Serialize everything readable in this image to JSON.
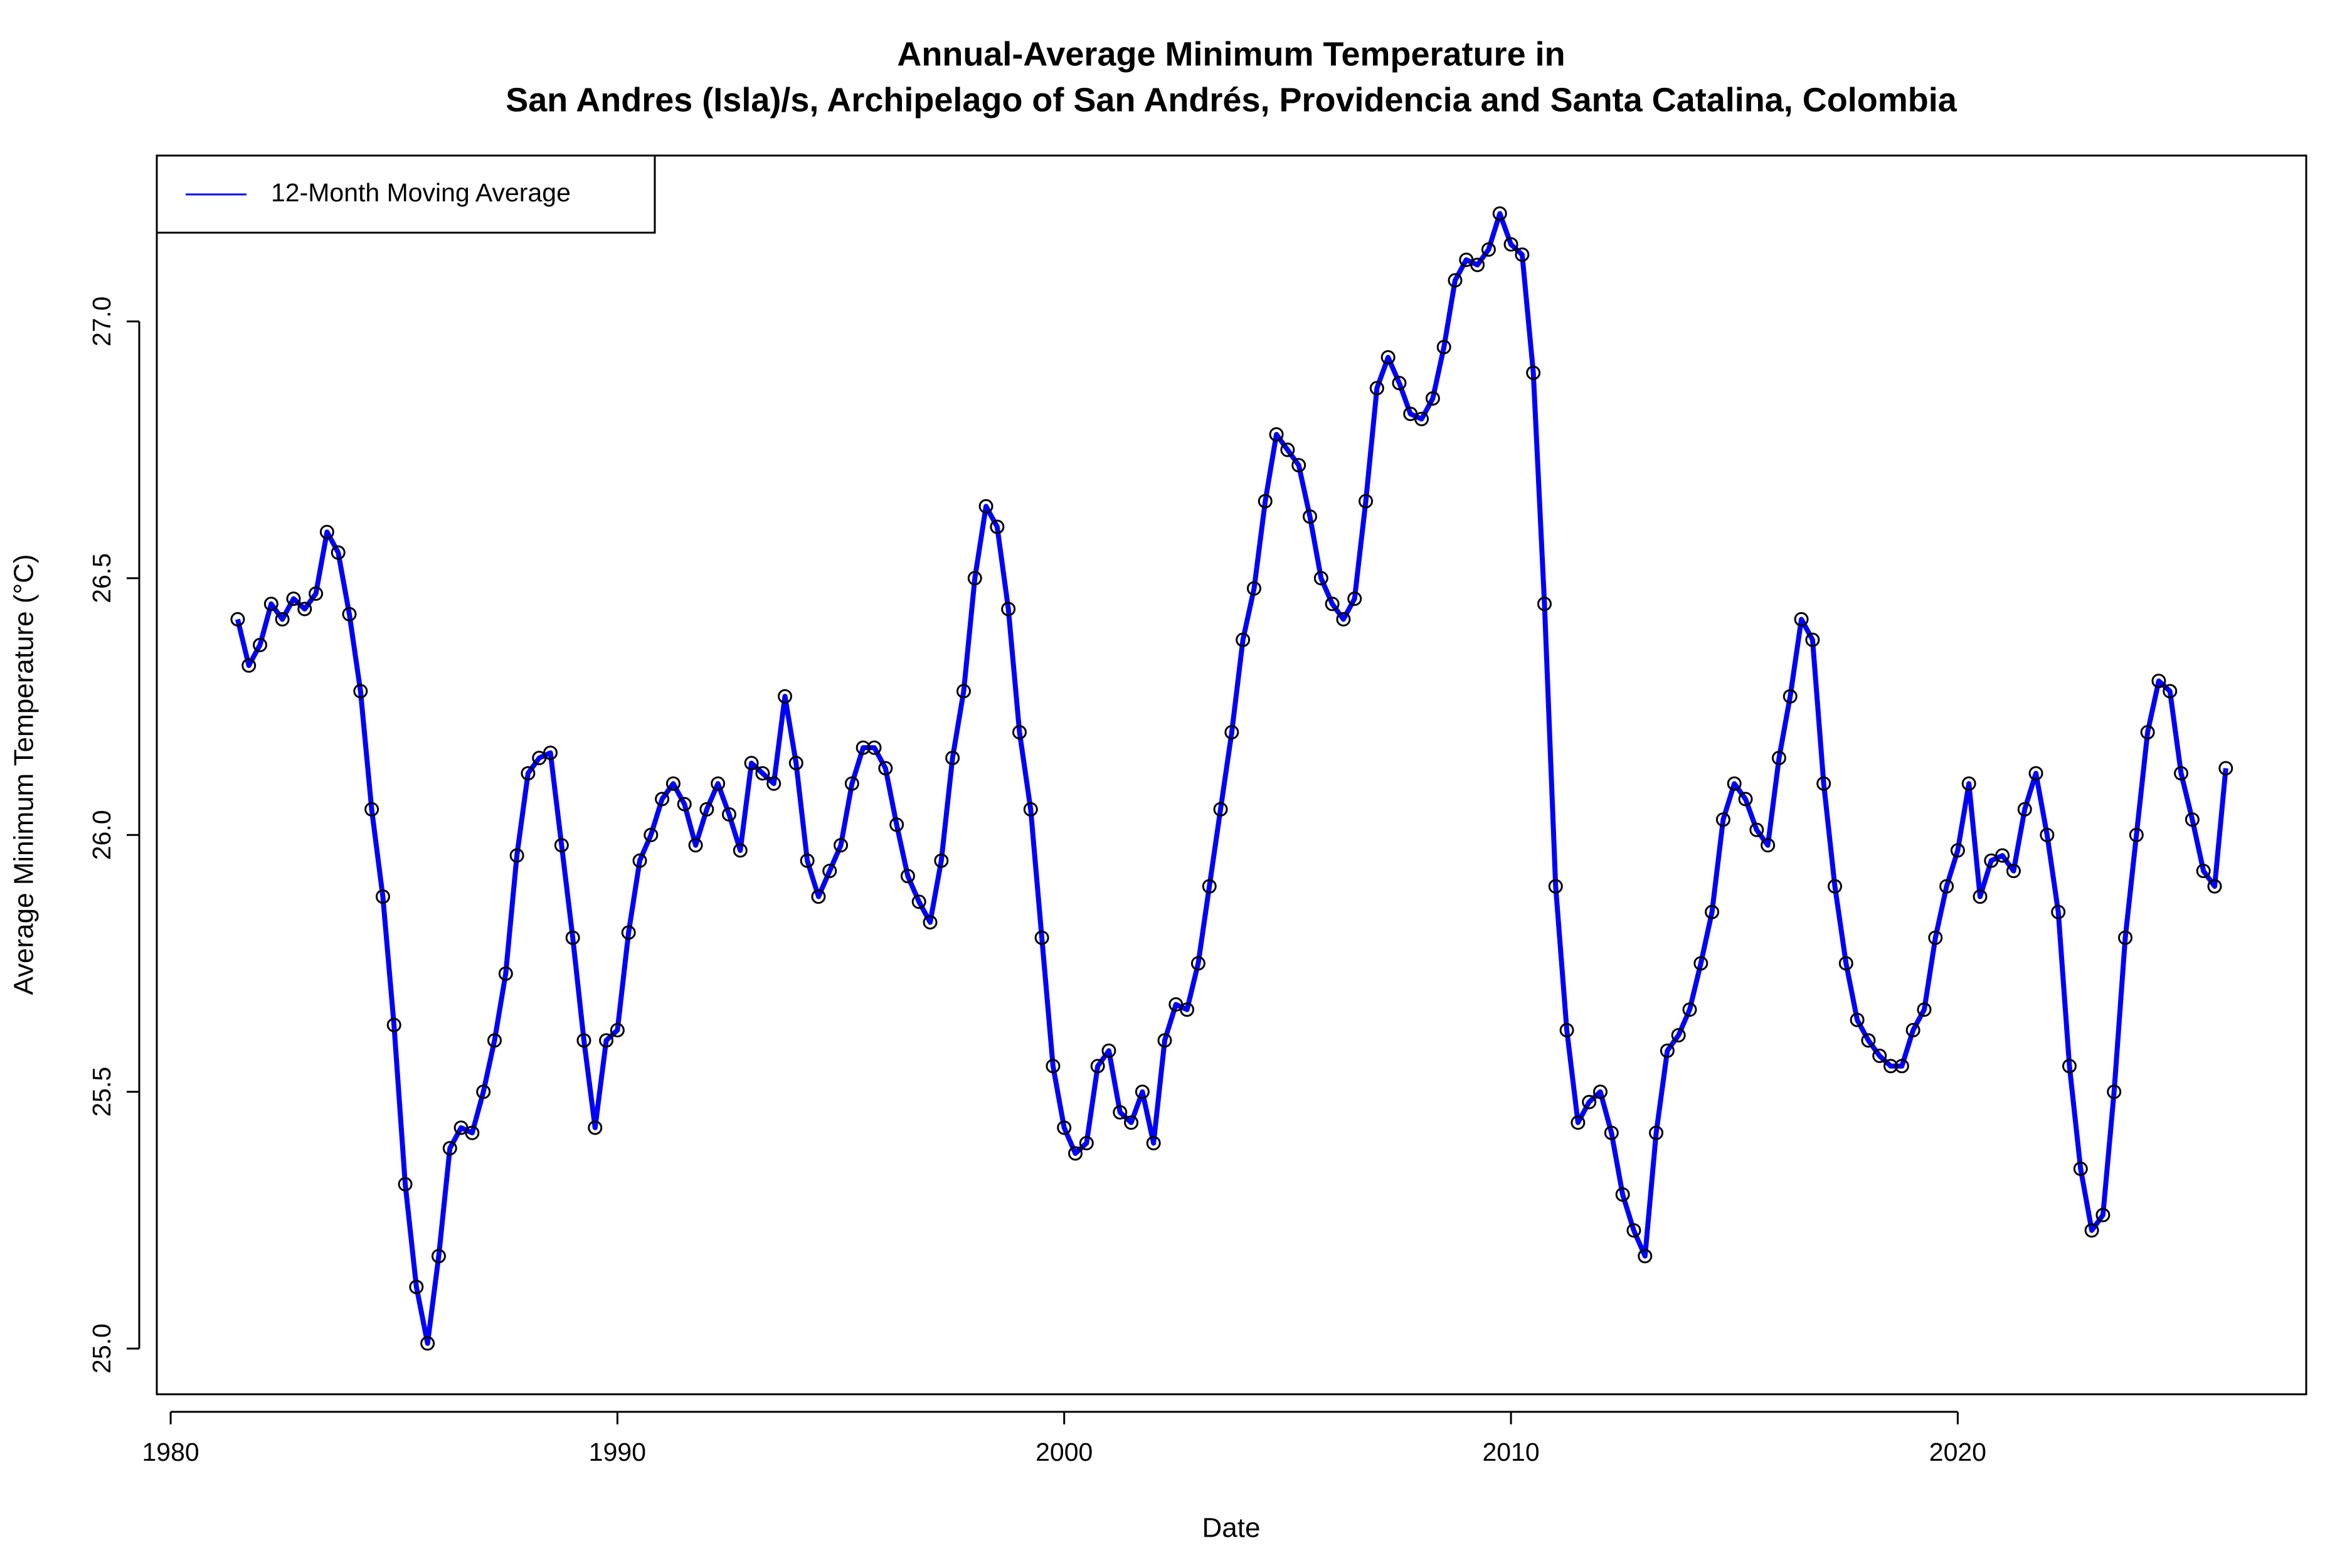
{
  "chart_data": {
    "type": "line",
    "title": [
      "Annual-Average Minimum Temperature in",
      "San Andres (Isla)/s, Archipelago of San Andrés, Providencia and Santa Catalina, Colombia"
    ],
    "x_label": "Date",
    "y_label": "Average Minimum Temperature (°C)",
    "xlim": [
      1979.69,
      2027.8
    ],
    "ylim": [
      24.911,
      27.323
    ],
    "xticks": [
      1980,
      1990,
      2000,
      2010,
      2020
    ],
    "yticks": [
      {
        "value": 25,
        "label": "25.0"
      },
      25.5,
      {
        "value": 26,
        "label": "26.0"
      },
      26.5,
      {
        "value": 27,
        "label": "27.0"
      }
    ],
    "legend": "top-left",
    "marker_color": "#000000",
    "x": [
      1981.5,
      1981.75,
      1982,
      1982.25,
      1982.5,
      1982.75,
      1983,
      1983.25,
      1983.5,
      1983.75,
      1984,
      1984.25,
      1984.5,
      1984.75,
      1985,
      1985.25,
      1985.5,
      1985.75,
      1986,
      1986.25,
      1986.5,
      1986.75,
      1987,
      1987.25,
      1987.5,
      1987.75,
      1988,
      1988.25,
      1988.5,
      1988.75,
      1989,
      1989.25,
      1989.5,
      1989.75,
      1990,
      1990.25,
      1990.5,
      1990.75,
      1991,
      1991.25,
      1991.5,
      1991.75,
      1992,
      1992.25,
      1992.5,
      1992.75,
      1993,
      1993.25,
      1993.5,
      1993.75,
      1994,
      1994.25,
      1994.5,
      1994.75,
      1995,
      1995.25,
      1995.5,
      1995.75,
      1996,
      1996.25,
      1996.5,
      1996.75,
      1997,
      1997.25,
      1997.5,
      1997.75,
      1998,
      1998.25,
      1998.5,
      1998.75,
      1999,
      1999.25,
      1999.5,
      1999.75,
      2000,
      2000.25,
      2000.5,
      2000.75,
      2001,
      2001.25,
      2001.5,
      2001.75,
      2002,
      2002.25,
      2002.5,
      2002.75,
      2003,
      2003.25,
      2003.5,
      2003.75,
      2004,
      2004.25,
      2004.5,
      2004.75,
      2005,
      2005.25,
      2005.5,
      2005.75,
      2006,
      2006.25,
      2006.5,
      2006.75,
      2007,
      2007.25,
      2007.5,
      2007.75,
      2008,
      2008.25,
      2008.5,
      2008.75,
      2009,
      2009.25,
      2009.5,
      2009.75,
      2010,
      2010.25,
      2010.5,
      2010.75,
      2011,
      2011.25,
      2011.5,
      2011.75,
      2012,
      2012.25,
      2012.5,
      2012.75,
      2013,
      2013.25,
      2013.5,
      2013.75,
      2014,
      2014.25,
      2014.5,
      2014.75,
      2015,
      2015.25,
      2015.5,
      2015.75,
      2016,
      2016.25,
      2016.5,
      2016.75,
      2017,
      2017.25,
      2017.5,
      2017.75,
      2018,
      2018.25,
      2018.5,
      2018.75,
      2019,
      2019.25,
      2019.5,
      2019.75,
      2020,
      2020.25,
      2020.5,
      2020.75,
      2021,
      2021.25,
      2021.5,
      2021.75,
      2022,
      2022.25,
      2022.5,
      2022.75,
      2023,
      2023.25,
      2023.5,
      2023.75,
      2024,
      2024.25,
      2024.5,
      2024.75,
      2025,
      2025.25,
      2025.5,
      2025.75,
      2026
    ],
    "series": [
      {
        "name": "12-Month Moving Average",
        "color": "#0000ff",
        "values": [
          26.42,
          26.33,
          26.37,
          26.45,
          26.42,
          26.46,
          26.44,
          26.47,
          26.59,
          26.55,
          26.43,
          26.28,
          26.05,
          25.88,
          25.63,
          25.32,
          25.12,
          25.01,
          25.18,
          25.39,
          25.43,
          25.42,
          25.5,
          25.6,
          25.73,
          25.96,
          26.12,
          26.15,
          26.16,
          25.98,
          25.8,
          25.6,
          25.43,
          25.6,
          25.62,
          25.81,
          25.95,
          26.0,
          26.07,
          26.1,
          26.06,
          25.98,
          26.05,
          26.1,
          26.04,
          25.97,
          26.14,
          26.12,
          26.1,
          26.27,
          26.14,
          25.95,
          25.88,
          25.93,
          25.98,
          26.1,
          26.17,
          26.17,
          26.13,
          26.02,
          25.92,
          25.87,
          25.83,
          25.95,
          26.15,
          26.28,
          26.5,
          26.64,
          26.6,
          26.44,
          26.2,
          26.05,
          25.8,
          25.55,
          25.43,
          25.38,
          25.4,
          25.55,
          25.58,
          25.46,
          25.44,
          25.5,
          25.4,
          25.6,
          25.67,
          25.66,
          25.75,
          25.9,
          26.05,
          26.2,
          26.38,
          26.48,
          26.65,
          26.78,
          26.75,
          26.72,
          26.62,
          26.5,
          26.45,
          26.42,
          26.46,
          26.65,
          26.87,
          26.93,
          26.88,
          26.82,
          26.81,
          26.85,
          26.95,
          27.08,
          27.12,
          27.11,
          27.14,
          27.21,
          27.15,
          27.13,
          26.9,
          26.45,
          25.9,
          25.62,
          25.44,
          25.48,
          25.5,
          25.42,
          25.3,
          25.23,
          25.18,
          25.42,
          25.58,
          25.61,
          25.66,
          25.75,
          25.85,
          26.03,
          26.1,
          26.07,
          26.01,
          25.98,
          26.15,
          26.27,
          26.42,
          26.38,
          26.1,
          25.9,
          25.75,
          25.64,
          25.6,
          25.57,
          25.55,
          25.55,
          25.62,
          25.66,
          25.8,
          25.9,
          25.97,
          26.1,
          25.88,
          25.95,
          25.96,
          25.93,
          26.05,
          26.12,
          26.0,
          25.85,
          25.55,
          25.35,
          25.23,
          25.26,
          25.5,
          25.8,
          26.0,
          26.2,
          26.3,
          26.28,
          26.12,
          26.03,
          25.93,
          25.9,
          26.13
        ]
      }
    ]
  }
}
